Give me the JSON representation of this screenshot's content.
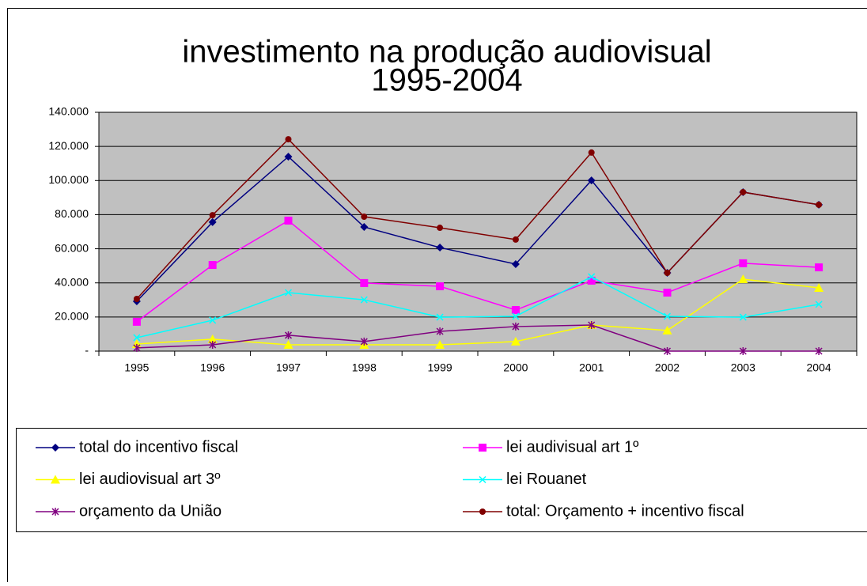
{
  "chart_data": {
    "type": "line",
    "title": "investimento na produção audiovisual",
    "subtitle": "1995-2004",
    "categories": [
      "1995",
      "1996",
      "1997",
      "1998",
      "1999",
      "2000",
      "2001",
      "2002",
      "2003",
      "2004"
    ],
    "series": [
      {
        "name": "total do incentivo fiscal",
        "color": "#000080",
        "marker": "diamond",
        "values": [
          29200,
          75600,
          114000,
          72800,
          60700,
          51000,
          100100,
          45900,
          93200,
          85800
        ]
      },
      {
        "name": "lei audivisual art 1º",
        "color": "#ff00ff",
        "marker": "square",
        "values": [
          17200,
          50500,
          76500,
          39900,
          38000,
          24100,
          41300,
          34300,
          51500,
          49100
        ]
      },
      {
        "name": "lei audiovisual art 3º",
        "color": "#ffff00",
        "marker": "triangle",
        "values": [
          4200,
          7000,
          3700,
          3700,
          3700,
          5600,
          15300,
          12100,
          42200,
          37100
        ]
      },
      {
        "name": "lei Rouanet",
        "color": "#00ffff",
        "marker": "x",
        "values": [
          7900,
          18100,
          34300,
          30100,
          19900,
          20400,
          43600,
          20400,
          19900,
          27400
        ]
      },
      {
        "name": "orçamento da União",
        "color": "#800080",
        "marker": "star",
        "values": [
          1900,
          3700,
          9300,
          5600,
          11600,
          14400,
          15300,
          0,
          0,
          0
        ]
      },
      {
        "name": "total: Orçamento + incentivo fiscal",
        "color": "#800000",
        "marker": "circle",
        "values": [
          30600,
          79700,
          124200,
          78800,
          72300,
          65400,
          116400,
          45900,
          93200,
          85800
        ]
      }
    ],
    "ylim": [
      0,
      140000
    ],
    "yticks": [
      {
        "value": 0,
        "label": "-"
      },
      {
        "value": 20000,
        "label": "20.000"
      },
      {
        "value": 40000,
        "label": "40.000"
      },
      {
        "value": 60000,
        "label": "60.000"
      },
      {
        "value": 80000,
        "label": "80.000"
      },
      {
        "value": 100000,
        "label": "100.000"
      },
      {
        "value": 120000,
        "label": "120.000"
      },
      {
        "value": 140000,
        "label": "140.000"
      }
    ],
    "grid": true,
    "legend": "bottom"
  }
}
